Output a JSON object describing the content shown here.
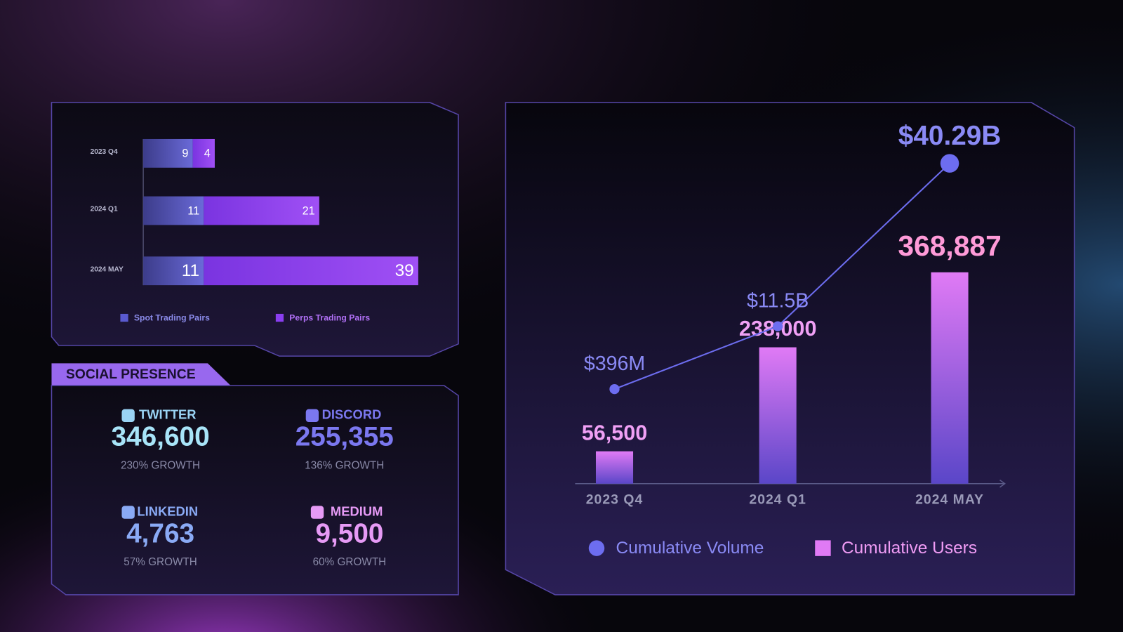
{
  "chart_data": [
    {
      "type": "bar",
      "orientation": "horizontal",
      "stacked": true,
      "categories": [
        "2023 Q4",
        "2024 Q1",
        "2024 MAY"
      ],
      "series": [
        {
          "name": "Spot Trading Pairs",
          "color": "#5a5ad0",
          "values": [
            9,
            11,
            11
          ]
        },
        {
          "name": "Perps Trading Pairs",
          "color": "#8a3ef0",
          "values": [
            4,
            21,
            39
          ]
        }
      ]
    },
    {
      "type": "bar_line",
      "categories": [
        "2023 Q4",
        "2024 Q1",
        "2024 MAY"
      ],
      "series": [
        {
          "name": "Cumulative Volume",
          "type": "line",
          "color": "#6d6df0",
          "values": [
            396000000,
            11500000000,
            40290000000
          ],
          "value_labels": [
            "$396M",
            "$11.5B",
            "$40.29B"
          ]
        },
        {
          "name": "Cumulative Users",
          "type": "bar",
          "color": "#e07af5",
          "values": [
            56500,
            238000,
            368887
          ],
          "value_labels": [
            "56,500",
            "238,000",
            "368,887"
          ]
        }
      ]
    }
  ],
  "social": {
    "title": "SOCIAL PRESENCE",
    "items": [
      {
        "name": "TWITTER",
        "value": "346,600",
        "growth": "230% GROWTH"
      },
      {
        "name": "DISCORD",
        "value": "255,355",
        "growth": "136% GROWTH"
      },
      {
        "name": "LINKEDIN",
        "value": "4,763",
        "growth": "57% GROWTH"
      },
      {
        "name": "MEDIUM",
        "value": "9,500",
        "growth": "60% GROWTH"
      }
    ]
  }
}
